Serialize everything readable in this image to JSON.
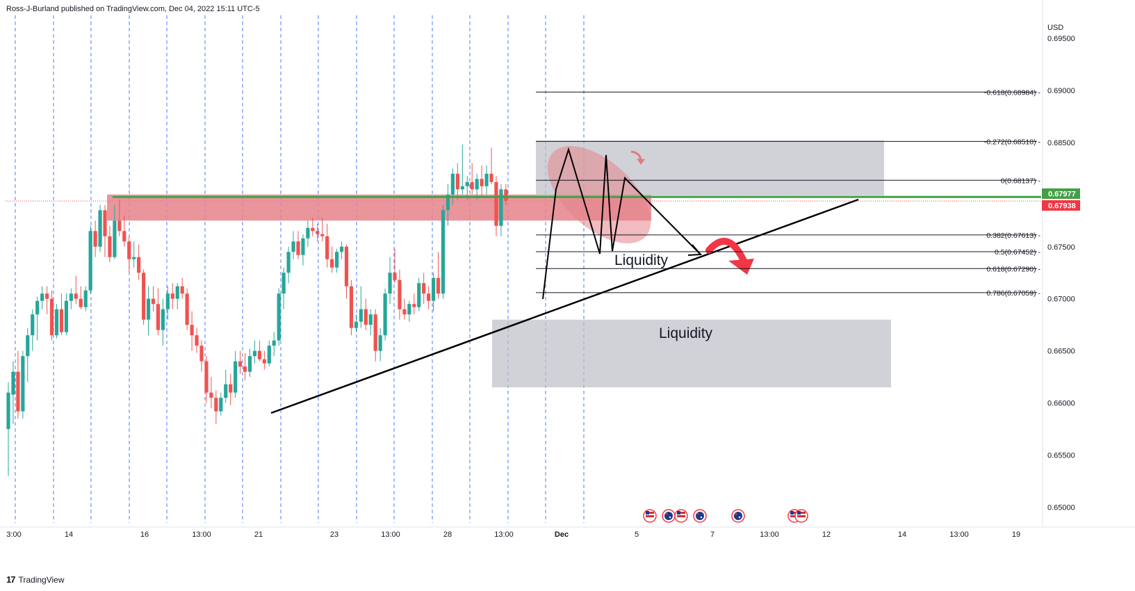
{
  "header": {
    "published_by": "Ross-J-Burland published on TradingView.com, Dec 04, 2022 15:11 UTC-5"
  },
  "footer": {
    "brand": "TradingView",
    "logo_glyph": "17"
  },
  "colors": {
    "up": "#26a69a",
    "down": "#ef5350",
    "grid_blue": "#2962ff",
    "support_green": "#43a047",
    "red_zone": "#e5838a",
    "grey_zone": "#bdbfc6",
    "price_label": "#f23645",
    "fib_line": "#131722",
    "arrow_red": "#f23645"
  },
  "chart_data": {
    "type": "candlestick",
    "symbol_currency": "USD",
    "y_axis": {
      "range": [
        0.6485,
        0.6972
      ],
      "ticks": [
        "0.69500",
        "0.69000",
        "0.68500",
        "0.67500",
        "0.67000",
        "0.66500",
        "0.66000",
        "0.65500",
        "0.65000"
      ]
    },
    "x_axis": {
      "ticks": [
        "3:00",
        "14",
        "16",
        "13:00",
        "21",
        "23",
        "13:00",
        "28",
        "13:00",
        "Dec",
        "5",
        "7",
        "13:00",
        "12",
        "14",
        "13:00",
        "19"
      ],
      "bold_ticks": [
        "Dec"
      ]
    },
    "price_labels": [
      {
        "value": "0.67977",
        "color": "#43a047"
      },
      {
        "value": "0.67938",
        "color": "#f23645"
      }
    ],
    "fibonacci": [
      {
        "label": "-0.618(0.68984)",
        "price": 0.68984
      },
      {
        "label": "-0.272(0.68510)",
        "price": 0.6851
      },
      {
        "label": "0(0.68137)",
        "price": 0.68137
      },
      {
        "label": "0.382(0.67613)",
        "price": 0.67613
      },
      {
        "label": "0.5(0.67452)",
        "price": 0.67452
      },
      {
        "label": "0.618(0.67290)",
        "price": 0.6729
      },
      {
        "label": "0.786(0.67059)",
        "price": 0.67059
      }
    ],
    "annotations": {
      "liquidity_upper": "Liquidity",
      "liquidity_lower": "Liquidity"
    },
    "support_level": 0.67977,
    "current_price": 0.67938,
    "zones": [
      {
        "name": "resistance-red",
        "price_top": 0.68,
        "price_bottom": 0.6775
      },
      {
        "name": "upper-grey",
        "price_top": 0.6852,
        "price_bottom": 0.6799
      },
      {
        "name": "lower-grey",
        "price_top": 0.668,
        "price_bottom": 0.6615
      }
    ],
    "calendar_events": [
      "US",
      "AU",
      "US",
      "AU",
      "AU",
      "US",
      "US"
    ],
    "candles": [
      {
        "o": 0.6575,
        "h": 0.662,
        "l": 0.653,
        "c": 0.661
      },
      {
        "o": 0.6608,
        "h": 0.664,
        "l": 0.658,
        "c": 0.663
      },
      {
        "o": 0.663,
        "h": 0.665,
        "l": 0.6585,
        "c": 0.6592
      },
      {
        "o": 0.6592,
        "h": 0.665,
        "l": 0.6585,
        "c": 0.6645
      },
      {
        "o": 0.6645,
        "h": 0.6672,
        "l": 0.662,
        "c": 0.6665
      },
      {
        "o": 0.6665,
        "h": 0.669,
        "l": 0.665,
        "c": 0.6685
      },
      {
        "o": 0.6685,
        "h": 0.6702,
        "l": 0.666,
        "c": 0.6698
      },
      {
        "o": 0.6698,
        "h": 0.6712,
        "l": 0.669,
        "c": 0.6705
      },
      {
        "o": 0.6705,
        "h": 0.6712,
        "l": 0.6685,
        "c": 0.67
      },
      {
        "o": 0.67,
        "h": 0.6708,
        "l": 0.666,
        "c": 0.6665
      },
      {
        "o": 0.6665,
        "h": 0.6695,
        "l": 0.6662,
        "c": 0.669
      },
      {
        "o": 0.669,
        "h": 0.6705,
        "l": 0.6665,
        "c": 0.6668
      },
      {
        "o": 0.6668,
        "h": 0.6705,
        "l": 0.6665,
        "c": 0.6698
      },
      {
        "o": 0.6698,
        "h": 0.671,
        "l": 0.669,
        "c": 0.6705
      },
      {
        "o": 0.6705,
        "h": 0.6722,
        "l": 0.6695,
        "c": 0.67
      },
      {
        "o": 0.67,
        "h": 0.6712,
        "l": 0.669,
        "c": 0.6692
      },
      {
        "o": 0.6692,
        "h": 0.6712,
        "l": 0.6688,
        "c": 0.6708
      },
      {
        "o": 0.6708,
        "h": 0.677,
        "l": 0.6705,
        "c": 0.6765
      },
      {
        "o": 0.6765,
        "h": 0.6775,
        "l": 0.674,
        "c": 0.675
      },
      {
        "o": 0.675,
        "h": 0.679,
        "l": 0.6745,
        "c": 0.6785
      },
      {
        "o": 0.6785,
        "h": 0.679,
        "l": 0.674,
        "c": 0.676
      },
      {
        "o": 0.676,
        "h": 0.677,
        "l": 0.6735,
        "c": 0.674
      },
      {
        "o": 0.674,
        "h": 0.679,
        "l": 0.6738,
        "c": 0.6775
      },
      {
        "o": 0.6775,
        "h": 0.6795,
        "l": 0.676,
        "c": 0.6765
      },
      {
        "o": 0.6765,
        "h": 0.678,
        "l": 0.675,
        "c": 0.6755
      },
      {
        "o": 0.6755,
        "h": 0.676,
        "l": 0.6725,
        "c": 0.6738
      },
      {
        "o": 0.6738,
        "h": 0.6755,
        "l": 0.673,
        "c": 0.674
      },
      {
        "o": 0.674,
        "h": 0.6752,
        "l": 0.6718,
        "c": 0.6725
      },
      {
        "o": 0.6725,
        "h": 0.6728,
        "l": 0.6675,
        "c": 0.668
      },
      {
        "o": 0.668,
        "h": 0.6712,
        "l": 0.6665,
        "c": 0.67
      },
      {
        "o": 0.67,
        "h": 0.6712,
        "l": 0.6688,
        "c": 0.6695
      },
      {
        "o": 0.6695,
        "h": 0.671,
        "l": 0.6665,
        "c": 0.667
      },
      {
        "o": 0.667,
        "h": 0.67,
        "l": 0.6655,
        "c": 0.669
      },
      {
        "o": 0.669,
        "h": 0.6712,
        "l": 0.668,
        "c": 0.6705
      },
      {
        "o": 0.6705,
        "h": 0.6715,
        "l": 0.669,
        "c": 0.67
      },
      {
        "o": 0.67,
        "h": 0.6715,
        "l": 0.669,
        "c": 0.6712
      },
      {
        "o": 0.6712,
        "h": 0.672,
        "l": 0.67,
        "c": 0.6705
      },
      {
        "o": 0.6705,
        "h": 0.671,
        "l": 0.667,
        "c": 0.6675
      },
      {
        "o": 0.6675,
        "h": 0.6688,
        "l": 0.665,
        "c": 0.6665
      },
      {
        "o": 0.6665,
        "h": 0.6672,
        "l": 0.6648,
        "c": 0.6655
      },
      {
        "o": 0.6655,
        "h": 0.666,
        "l": 0.663,
        "c": 0.664
      },
      {
        "o": 0.664,
        "h": 0.6645,
        "l": 0.66,
        "c": 0.661
      },
      {
        "o": 0.661,
        "h": 0.6625,
        "l": 0.6595,
        "c": 0.6605
      },
      {
        "o": 0.6605,
        "h": 0.6612,
        "l": 0.658,
        "c": 0.6592
      },
      {
        "o": 0.6592,
        "h": 0.661,
        "l": 0.6588,
        "c": 0.6605
      },
      {
        "o": 0.6605,
        "h": 0.6632,
        "l": 0.66,
        "c": 0.6618
      },
      {
        "o": 0.6618,
        "h": 0.6628,
        "l": 0.6598,
        "c": 0.661
      },
      {
        "o": 0.661,
        "h": 0.665,
        "l": 0.6605,
        "c": 0.664
      },
      {
        "o": 0.664,
        "h": 0.665,
        "l": 0.6628,
        "c": 0.6635
      },
      {
        "o": 0.6635,
        "h": 0.6648,
        "l": 0.6622,
        "c": 0.663
      },
      {
        "o": 0.663,
        "h": 0.6652,
        "l": 0.6625,
        "c": 0.6645
      },
      {
        "o": 0.6645,
        "h": 0.666,
        "l": 0.6638,
        "c": 0.665
      },
      {
        "o": 0.665,
        "h": 0.666,
        "l": 0.664,
        "c": 0.6642
      },
      {
        "o": 0.6642,
        "h": 0.665,
        "l": 0.6632,
        "c": 0.6638
      },
      {
        "o": 0.6638,
        "h": 0.666,
        "l": 0.6635,
        "c": 0.6655
      },
      {
        "o": 0.6655,
        "h": 0.6668,
        "l": 0.6645,
        "c": 0.666
      },
      {
        "o": 0.666,
        "h": 0.671,
        "l": 0.6655,
        "c": 0.6705
      },
      {
        "o": 0.6705,
        "h": 0.673,
        "l": 0.669,
        "c": 0.6725
      },
      {
        "o": 0.6725,
        "h": 0.675,
        "l": 0.6715,
        "c": 0.6745
      },
      {
        "o": 0.6745,
        "h": 0.6765,
        "l": 0.6738,
        "c": 0.6755
      },
      {
        "o": 0.6755,
        "h": 0.6765,
        "l": 0.6738,
        "c": 0.6742
      },
      {
        "o": 0.6742,
        "h": 0.6762,
        "l": 0.6732,
        "c": 0.6758
      },
      {
        "o": 0.6758,
        "h": 0.6775,
        "l": 0.675,
        "c": 0.6768
      },
      {
        "o": 0.6768,
        "h": 0.6778,
        "l": 0.676,
        "c": 0.6765
      },
      {
        "o": 0.6765,
        "h": 0.6772,
        "l": 0.6755,
        "c": 0.6762
      },
      {
        "o": 0.6762,
        "h": 0.6778,
        "l": 0.6755,
        "c": 0.676
      },
      {
        "o": 0.676,
        "h": 0.6772,
        "l": 0.673,
        "c": 0.6738
      },
      {
        "o": 0.6738,
        "h": 0.675,
        "l": 0.6725,
        "c": 0.673
      },
      {
        "o": 0.673,
        "h": 0.6748,
        "l": 0.6725,
        "c": 0.6745
      },
      {
        "o": 0.6745,
        "h": 0.6755,
        "l": 0.6738,
        "c": 0.675
      },
      {
        "o": 0.675,
        "h": 0.6752,
        "l": 0.67,
        "c": 0.6712
      },
      {
        "o": 0.6712,
        "h": 0.6718,
        "l": 0.6665,
        "c": 0.6672
      },
      {
        "o": 0.6672,
        "h": 0.6685,
        "l": 0.6668,
        "c": 0.6678
      },
      {
        "o": 0.6678,
        "h": 0.6712,
        "l": 0.6672,
        "c": 0.669
      },
      {
        "o": 0.669,
        "h": 0.67,
        "l": 0.667,
        "c": 0.6675
      },
      {
        "o": 0.6675,
        "h": 0.669,
        "l": 0.6665,
        "c": 0.6685
      },
      {
        "o": 0.6685,
        "h": 0.669,
        "l": 0.664,
        "c": 0.665
      },
      {
        "o": 0.665,
        "h": 0.6672,
        "l": 0.664,
        "c": 0.6665
      },
      {
        "o": 0.6665,
        "h": 0.671,
        "l": 0.666,
        "c": 0.6705
      },
      {
        "o": 0.6705,
        "h": 0.674,
        "l": 0.6695,
        "c": 0.6725
      },
      {
        "o": 0.6725,
        "h": 0.6748,
        "l": 0.6715,
        "c": 0.6718
      },
      {
        "o": 0.6718,
        "h": 0.6728,
        "l": 0.668,
        "c": 0.669
      },
      {
        "o": 0.669,
        "h": 0.67,
        "l": 0.668,
        "c": 0.6685
      },
      {
        "o": 0.6685,
        "h": 0.6698,
        "l": 0.6678,
        "c": 0.6695
      },
      {
        "o": 0.6695,
        "h": 0.6705,
        "l": 0.6685,
        "c": 0.6692
      },
      {
        "o": 0.6692,
        "h": 0.672,
        "l": 0.6688,
        "c": 0.6715
      },
      {
        "o": 0.6715,
        "h": 0.6725,
        "l": 0.6695,
        "c": 0.6705
      },
      {
        "o": 0.6705,
        "h": 0.6712,
        "l": 0.669,
        "c": 0.6698
      },
      {
        "o": 0.6698,
        "h": 0.6725,
        "l": 0.6688,
        "c": 0.672
      },
      {
        "o": 0.672,
        "h": 0.6745,
        "l": 0.67,
        "c": 0.6705
      },
      {
        "o": 0.6705,
        "h": 0.679,
        "l": 0.67,
        "c": 0.6785
      },
      {
        "o": 0.6785,
        "h": 0.681,
        "l": 0.677,
        "c": 0.68
      },
      {
        "o": 0.68,
        "h": 0.6825,
        "l": 0.679,
        "c": 0.682
      },
      {
        "o": 0.682,
        "h": 0.683,
        "l": 0.6795,
        "c": 0.6805
      },
      {
        "o": 0.6805,
        "h": 0.6848,
        "l": 0.68,
        "c": 0.6808
      },
      {
        "o": 0.6808,
        "h": 0.6818,
        "l": 0.6795,
        "c": 0.6812
      },
      {
        "o": 0.6812,
        "h": 0.683,
        "l": 0.68,
        "c": 0.6805
      },
      {
        "o": 0.6805,
        "h": 0.682,
        "l": 0.6795,
        "c": 0.6815
      },
      {
        "o": 0.6815,
        "h": 0.6828,
        "l": 0.6798,
        "c": 0.6808
      },
      {
        "o": 0.6808,
        "h": 0.6828,
        "l": 0.68,
        "c": 0.682
      },
      {
        "o": 0.682,
        "h": 0.6845,
        "l": 0.681,
        "c": 0.6812
      },
      {
        "o": 0.6812,
        "h": 0.6818,
        "l": 0.676,
        "c": 0.677
      },
      {
        "o": 0.677,
        "h": 0.681,
        "l": 0.676,
        "c": 0.6805
      },
      {
        "o": 0.6805,
        "h": 0.681,
        "l": 0.679,
        "c": 0.6794
      }
    ],
    "trendline": {
      "from": [
        0.6585
      ],
      "to_price": 0.6799
    }
  }
}
